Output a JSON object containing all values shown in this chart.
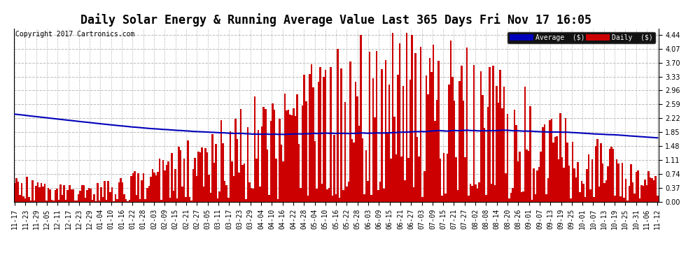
{
  "title": "Daily Solar Energy & Running Average Value Last 365 Days Fri Nov 17 16:05",
  "copyright": "Copyright 2017 Cartronics.com",
  "legend_labels": [
    "Average  ($)",
    "Daily  ($)"
  ],
  "legend_colors": [
    "#0000bb",
    "#cc0000"
  ],
  "bar_color": "#cc0000",
  "avg_line_color": "#0000bb",
  "bg_color": "#ffffff",
  "plot_bg_color": "#ffffff",
  "grid_color": "#bbbbbb",
  "yticks": [
    0.0,
    0.37,
    0.74,
    1.11,
    1.48,
    1.85,
    2.22,
    2.59,
    2.96,
    3.33,
    3.7,
    4.07,
    4.44
  ],
  "ylim": [
    0.0,
    4.6
  ],
  "n_days": 365,
  "x_tick_labels": [
    "11-17",
    "11-23",
    "11-29",
    "12-05",
    "12-11",
    "12-17",
    "12-23",
    "12-29",
    "01-04",
    "01-10",
    "01-16",
    "01-22",
    "01-28",
    "02-03",
    "02-09",
    "02-15",
    "02-21",
    "02-27",
    "03-05",
    "03-11",
    "03-17",
    "03-23",
    "03-29",
    "04-04",
    "04-10",
    "04-16",
    "04-22",
    "04-28",
    "05-04",
    "05-10",
    "05-16",
    "05-22",
    "05-28",
    "06-03",
    "06-09",
    "06-15",
    "06-21",
    "06-27",
    "07-03",
    "07-09",
    "07-15",
    "07-21",
    "07-27",
    "08-02",
    "08-08",
    "08-14",
    "08-20",
    "08-26",
    "09-01",
    "09-07",
    "09-13",
    "09-19",
    "09-25",
    "10-01",
    "10-07",
    "10-13",
    "10-19",
    "10-25",
    "10-31",
    "11-06",
    "11-12"
  ],
  "title_fontsize": 12,
  "tick_fontsize": 7,
  "copyright_fontsize": 7
}
